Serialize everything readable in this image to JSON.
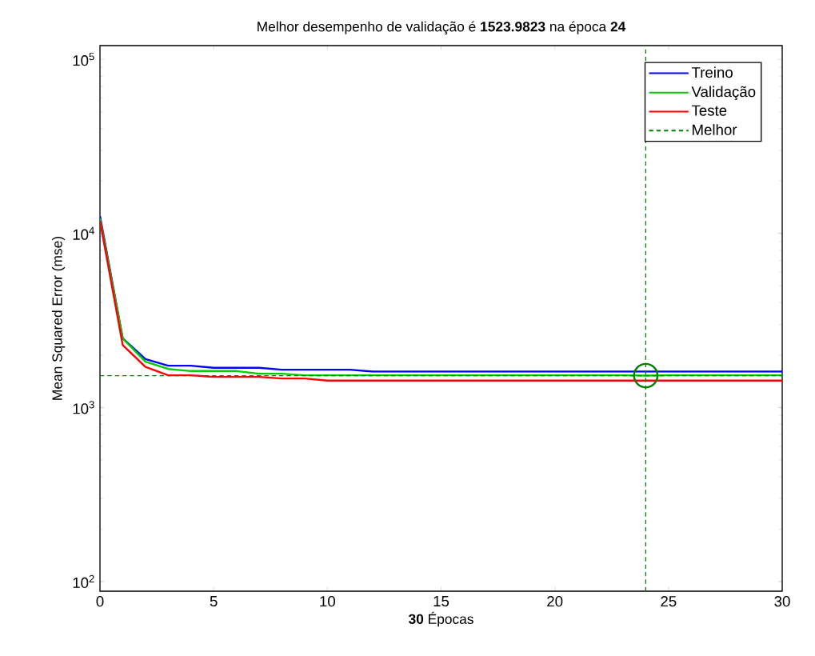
{
  "chart_data": {
    "type": "line",
    "title": "Melhor desempenho de validação é **1523.9823** na época **24**",
    "xlabel": "**30** Épocas",
    "ylabel": "Mean Squared Error  (mse)",
    "x": [
      0,
      1,
      2,
      3,
      4,
      5,
      6,
      7,
      8,
      9,
      10,
      11,
      12,
      13,
      14,
      15,
      16,
      17,
      18,
      19,
      20,
      21,
      22,
      23,
      24,
      25,
      26,
      27,
      28,
      29,
      30
    ],
    "series": [
      {
        "name": "Treino",
        "color": "#0000ff",
        "values": [
          12600,
          2500,
          1897,
          1738,
          1738,
          1691,
          1691,
          1691,
          1649,
          1649,
          1649,
          1649,
          1607,
          1607,
          1607,
          1607,
          1607,
          1607,
          1607,
          1607,
          1607,
          1607,
          1607,
          1607,
          1607,
          1607,
          1607,
          1607,
          1607,
          1607,
          1607
        ]
      },
      {
        "name": "Validação",
        "color": "#00cc00",
        "values": [
          12200,
          2490,
          1832,
          1665,
          1619,
          1619,
          1619,
          1563,
          1563,
          1530,
          1530,
          1530,
          1530,
          1530,
          1530,
          1530,
          1530,
          1530,
          1530,
          1530,
          1530,
          1530,
          1530,
          1530,
          1524,
          1530,
          1530,
          1530,
          1530,
          1530,
          1530
        ]
      },
      {
        "name": "Teste",
        "color": "#ff0000",
        "values": [
          11800,
          2285,
          1710,
          1531,
          1531,
          1499,
          1499,
          1499,
          1468,
          1468,
          1428,
          1428,
          1428,
          1428,
          1428,
          1428,
          1428,
          1428,
          1428,
          1428,
          1428,
          1428,
          1428,
          1428,
          1428,
          1428,
          1428,
          1428,
          1428,
          1428,
          1428
        ]
      },
      {
        "type": "scatter",
        "x": [
          24
        ],
        "values": [
          1523.9823
        ],
        "color": "#008000",
        "marker": "circle"
      }
    ],
    "ref_lines": [
      {
        "axis": "y",
        "value": 1523.9823,
        "label": "Melhor",
        "color": "#008000",
        "line_style": "dashed"
      },
      {
        "axis": "x",
        "value": 24,
        "color": "#008000",
        "line_style": "dashed"
      }
    ],
    "log": "y",
    "xlim": [
      0,
      30
    ],
    "ylim": [
      88,
      120000
    ],
    "xticks": [
      0,
      5,
      10,
      15,
      20,
      25,
      30
    ],
    "yticks": [
      {
        "value": 100,
        "label": "10$^{2}$"
      },
      {
        "value": 1000,
        "label": "10$^{3}$"
      },
      {
        "value": 10000,
        "label": "10$^{4}$"
      },
      {
        "value": 100000,
        "label": "10$^{5}$"
      }
    ],
    "grid": false,
    "legend": "top right",
    "line_style": "solid"
  }
}
